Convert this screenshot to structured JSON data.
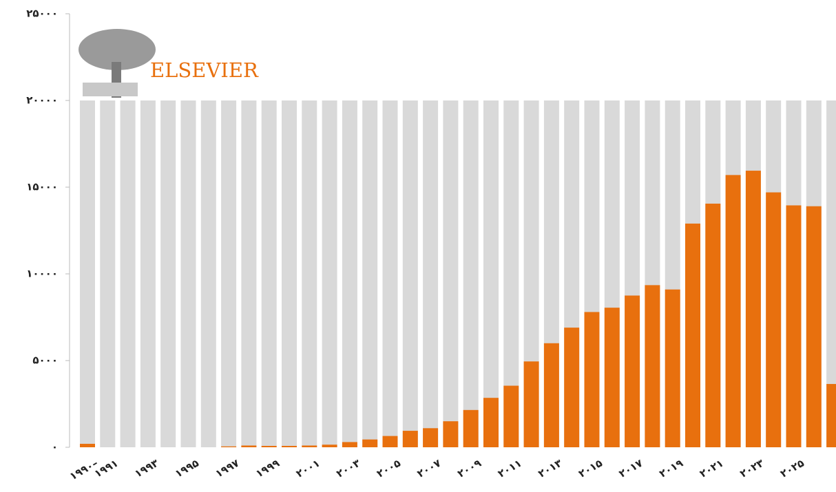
{
  "logo": "ELSEVIER",
  "chart_data": {
    "type": "bar",
    "categories": [
      "۱۹۹۰–",
      "۱۹۹۱",
      null,
      "۱۹۹۳",
      null,
      "۱۹۹۵",
      null,
      "۱۹۹۷",
      null,
      "۱۹۹۹",
      null,
      "۲۰۰۱",
      null,
      "۲۰۰۳",
      null,
      "۲۰۰۵",
      null,
      "۲۰۰۷",
      null,
      "۲۰۰۹",
      null,
      "۲۰۱۱",
      null,
      "۲۰۱۳",
      null,
      "۲۰۱۵",
      null,
      "۲۰۱۷",
      null,
      "۲۰۱۹",
      null,
      "۲۰۲۱",
      null,
      "۲۰۲۳",
      null,
      "۲۰۲۵",
      null,
      null
    ],
    "values": [
      200,
      0,
      0,
      0,
      0,
      0,
      0,
      50,
      100,
      80,
      80,
      100,
      150,
      300,
      450,
      650,
      950,
      1100,
      1500,
      2150,
      2850,
      3550,
      4950,
      6000,
      6900,
      7800,
      8050,
      8750,
      9350,
      9100,
      12900,
      14050,
      15700,
      15950,
      14700,
      13950,
      13900,
      3650
    ],
    "color": "#e8700e",
    "background_color": "#d9d9d9",
    "ylim": [
      0,
      25000
    ],
    "yticks": [
      {
        "value": 0,
        "label": "۰"
      },
      {
        "value": 5000,
        "label": "۵۰۰۰"
      },
      {
        "value": 10000,
        "label": "۱۰۰۰۰"
      },
      {
        "value": 15000,
        "label": "۱۵۰۰۰"
      },
      {
        "value": 20000,
        "label": "۲۰۰۰۰"
      },
      {
        "value": 25000,
        "label": "۲۵۰۰۰"
      }
    ]
  }
}
